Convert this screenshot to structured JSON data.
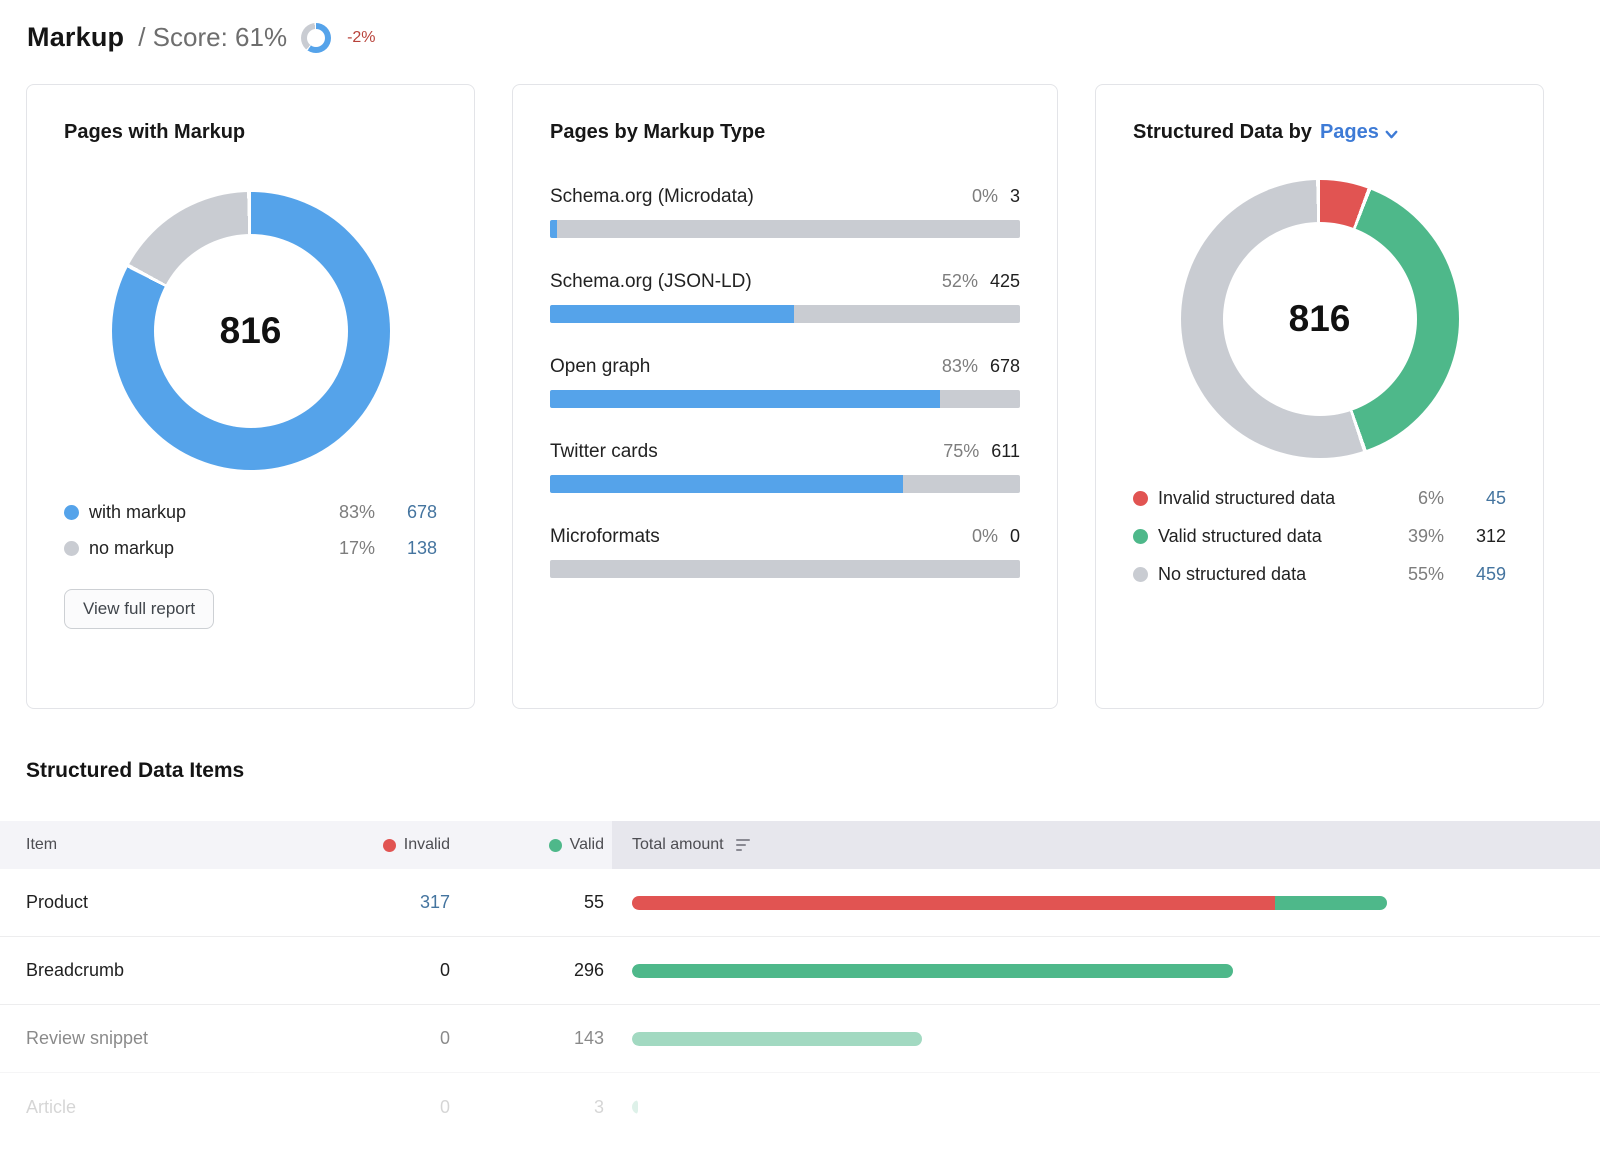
{
  "header": {
    "title": "Markup",
    "score_text": "/ Score: 61%",
    "score_pct": 61,
    "delta": "-2%"
  },
  "colors": {
    "blue": "#55a3ea",
    "track_gray": "#c9ccd2",
    "red": "#e15452",
    "green": "#4eb88a",
    "link_blue": "#44749f",
    "selector_blue": "#3e7bd6",
    "delta_red": "#b8423a"
  },
  "cards": {
    "pages_with_markup": {
      "title": "Pages with Markup",
      "button_label": "View full report"
    },
    "pages_by_markup_type": {
      "title": "Pages by Markup Type"
    },
    "structured_data_by": {
      "title_prefix": "Structured Data by",
      "selector": "Pages"
    }
  },
  "table": {
    "title": "Structured Data Items",
    "columns": {
      "item": "Item",
      "invalid": "Invalid",
      "valid": "Valid",
      "total": "Total amount"
    }
  },
  "chart_data": [
    {
      "type": "pie",
      "title": "Pages with Markup",
      "center_total": "816",
      "legend_position": "bottom",
      "slices": [
        {
          "label": "with markup",
          "pct": 83,
          "value": "678",
          "color": "#55a3ea",
          "link": true
        },
        {
          "label": "no markup",
          "pct": 17,
          "value": "138",
          "color": "#c9ccd2",
          "link": true
        }
      ]
    },
    {
      "type": "bar",
      "orientation": "horizontal",
      "title": "Pages by Markup Type",
      "xlim": [
        0,
        100
      ],
      "bars": [
        {
          "label": "Schema.org (Microdata)",
          "pct_label": "0%",
          "fill_pct": 1.5,
          "value": "3",
          "link": true
        },
        {
          "label": "Schema.org (JSON-LD)",
          "pct_label": "52%",
          "fill_pct": 52,
          "value": "425",
          "link": true
        },
        {
          "label": "Open graph",
          "pct_label": "83%",
          "fill_pct": 83,
          "value": "678",
          "link": true
        },
        {
          "label": "Twitter cards",
          "pct_label": "75%",
          "fill_pct": 75,
          "value": "611",
          "link": true
        },
        {
          "label": "Microformats",
          "pct_label": "0%",
          "fill_pct": 0,
          "value": "0",
          "link": false
        }
      ]
    },
    {
      "type": "pie",
      "title": "Structured Data by Pages",
      "center_total": "816",
      "legend_position": "bottom",
      "slices": [
        {
          "label": "Invalid structured data",
          "pct": 6,
          "value": "45",
          "color": "#e15452",
          "link": true
        },
        {
          "label": "Valid structured data",
          "pct": 39,
          "value": "312",
          "color": "#4eb88a",
          "link": false
        },
        {
          "label": "No structured data",
          "pct": 55,
          "value": "459",
          "color": "#c9ccd2",
          "link": true
        }
      ]
    },
    {
      "type": "table",
      "title": "Structured Data Items",
      "max_total": 372,
      "rows": [
        {
          "item": "Product",
          "invalid": 317,
          "valid": 55,
          "invalid_link": true
        },
        {
          "item": "Breadcrumb",
          "invalid": 0,
          "valid": 296,
          "invalid_link": false
        },
        {
          "item": "Review snippet",
          "invalid": 0,
          "valid": 143,
          "invalid_link": false
        },
        {
          "item": "Article",
          "invalid": 0,
          "valid": 3,
          "invalid_link": false
        }
      ]
    }
  ]
}
